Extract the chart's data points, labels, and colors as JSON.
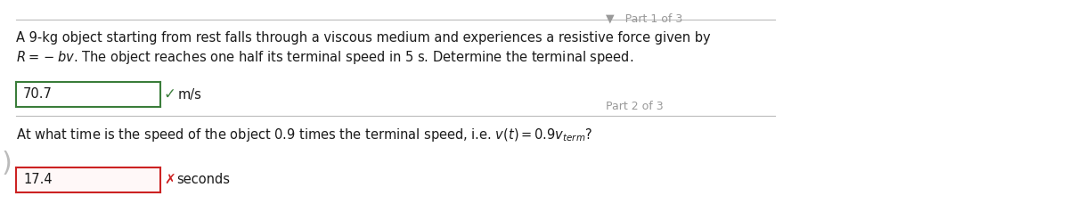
{
  "bg_color": "#ffffff",
  "part1_label": "Part 1 of 3",
  "part2_label": "Part 2 of 3",
  "arrow_char": "▼",
  "line1": "A 9-kg object starting from rest falls through a viscous medium and experiences a resistive force given by",
  "line2_suffix": ". The object reaches one half its terminal speed in 5 s. Determine the terminal speed.",
  "answer1_value": "70.7",
  "answer1_unit": "m/s",
  "check_color": "#3a7d3a",
  "cross_color": "#cc2222",
  "box1_edgecolor": "#3a7d3a",
  "box2_edgecolor": "#cc2222",
  "box2_facecolor": "#fff8f8",
  "question_text": "At what time is the speed of the object 0.9 times the terminal speed, i.e. $v(t) = 0.9v_{term}$?",
  "answer2_value": "17.4",
  "answer2_unit": "seconds",
  "sep_color": "#bbbbbb",
  "text_color": "#1a1a1a",
  "part_label_color": "#999999",
  "body_fs": 10.5,
  "part_fs": 9.0,
  "ans_fs": 10.5,
  "fig_w": 12.0,
  "fig_h": 2.38,
  "dpi": 100
}
